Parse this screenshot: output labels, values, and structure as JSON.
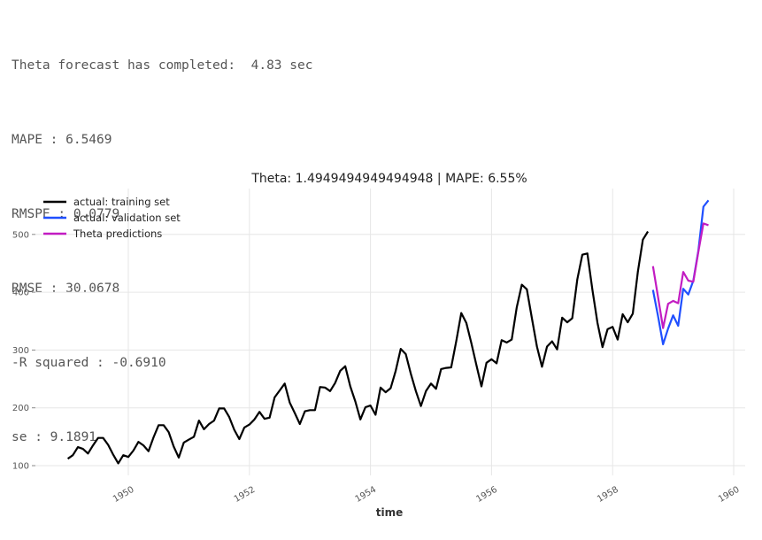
{
  "output_log": {
    "lines": [
      "Theta forecast has completed:  4.83 sec",
      "MAPE : 6.5469",
      "RMSPE : 0.0779",
      "RMSE : 30.0678",
      "-R squared : -0.6910",
      "se : 9.1891"
    ]
  },
  "chart_data": {
    "type": "line",
    "title": "Theta: 1.4949494949494948 | MAPE: 6.55%",
    "xlabel": "time",
    "ylabel": "",
    "xlim": [
      1948.8,
      1960.1
    ],
    "ylim": [
      85,
      580
    ],
    "grid": true,
    "legend_position": "upper left",
    "x_ticks": [
      "1950",
      "1952",
      "1954",
      "1956",
      "1958",
      "1960"
    ],
    "y_ticks": [
      "100",
      "200",
      "300",
      "400",
      "500"
    ],
    "series": [
      {
        "name": "actual: training set",
        "color": "#000000",
        "start": "1949-01",
        "freq": "monthly",
        "values": [
          112,
          118,
          132,
          129,
          121,
          135,
          148,
          148,
          136,
          119,
          104,
          118,
          115,
          126,
          141,
          135,
          125,
          149,
          170,
          170,
          158,
          133,
          114,
          140,
          145,
          150,
          178,
          163,
          172,
          178,
          199,
          199,
          184,
          162,
          146,
          166,
          171,
          180,
          193,
          181,
          183,
          218,
          230,
          242,
          209,
          191,
          172,
          194,
          196,
          196,
          236,
          235,
          229,
          243,
          264,
          272,
          237,
          211,
          180,
          201,
          204,
          188,
          235,
          227,
          234,
          264,
          302,
          293,
          259,
          229,
          203,
          229,
          242,
          233,
          267,
          269,
          270,
          315,
          364,
          347,
          312,
          274,
          237,
          278,
          284,
          277,
          317,
          313,
          318,
          374,
          413,
          405,
          355,
          306,
          271,
          306,
          315,
          301,
          356,
          348,
          355,
          422,
          465,
          467,
          404,
          347,
          305,
          336,
          340,
          318,
          362,
          348,
          363,
          435,
          491,
          505
        ]
      },
      {
        "name": "actual: validation set",
        "color": "#1f4fff",
        "start": "1958-09",
        "freq": "monthly",
        "values": [
          404,
          359,
          310,
          337,
          360,
          342,
          406,
          396,
          420,
          472,
          548,
          559
        ]
      },
      {
        "name": "Theta predictions",
        "color": "#c21cc2",
        "start": "1958-09",
        "freq": "monthly",
        "values": [
          445,
          392,
          338,
          380,
          385,
          381,
          435,
          420,
          418,
          470,
          519,
          516
        ]
      }
    ]
  }
}
